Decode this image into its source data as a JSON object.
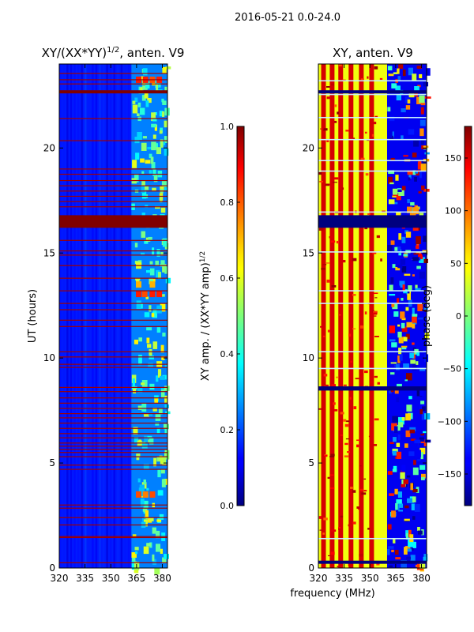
{
  "page": {
    "title": "2016-05-21 0.0-24.0"
  },
  "chart_data": [
    {
      "type": "heatmap",
      "title": "XY/(XX*YY)",
      "title_exponent": "1/2",
      "title_suffix": ", anten. V9",
      "xlabel": "",
      "ylabel": "UT (hours)",
      "xlim": [
        320,
        383
      ],
      "ylim": [
        0,
        24
      ],
      "xticks": [
        320,
        335,
        350,
        365,
        380
      ],
      "yticks": [
        0,
        5,
        10,
        15,
        20
      ],
      "colorbar": {
        "label": "XY amp. / (XX*YY amp)",
        "label_exponent": "1/2",
        "range": [
          0.0,
          1.0
        ],
        "ticks": [
          "0.0",
          "0.2",
          "0.4",
          "0.6",
          "0.8",
          "1.0"
        ],
        "colormap": "jet"
      },
      "features": {
        "saturated_bands_hours": [
          [
            16.2,
            16.8
          ],
          [
            22.6,
            22.75
          ]
        ],
        "thin_bad_lines_hours": [
          0.25,
          1.45,
          1.5,
          2.05,
          2.4,
          2.85,
          3.0,
          4.7,
          4.9,
          5.3,
          5.5,
          5.65,
          5.8,
          5.95,
          6.2,
          6.4,
          6.65,
          6.9,
          7.15,
          7.35,
          7.6,
          7.85,
          8.1,
          8.4,
          8.6,
          9.55,
          9.7,
          10.05,
          10.3,
          11.5,
          11.8,
          12.3,
          12.6,
          13.2,
          13.8,
          14.4,
          14.9,
          15.1,
          15.6,
          17.2,
          17.45,
          17.7,
          17.95,
          18.2,
          18.45,
          18.75,
          19.0,
          20.35,
          21.4,
          23.05,
          23.25,
          23.55
        ],
        "band_lo_value": 0.15,
        "active_band_mhz": [
          362,
          383
        ],
        "active_band_value": 0.45,
        "hot_spots": [
          {
            "freq_mhz": 366,
            "ut": 13.05,
            "value": 0.85
          },
          {
            "freq_mhz": 369.5,
            "ut": 13.05,
            "value": 0.8
          },
          {
            "freq_mhz": 374,
            "ut": 13.05,
            "value": 0.85
          },
          {
            "freq_mhz": 378,
            "ut": 13.05,
            "value": 0.85
          },
          {
            "freq_mhz": 366,
            "ut": 3.5,
            "value": 0.8
          },
          {
            "freq_mhz": 370,
            "ut": 3.5,
            "value": 0.75
          },
          {
            "freq_mhz": 374,
            "ut": 3.5,
            "value": 0.8
          },
          {
            "freq_mhz": 366,
            "ut": 23.25,
            "value": 0.85
          },
          {
            "freq_mhz": 370,
            "ut": 23.25,
            "value": 0.85
          },
          {
            "freq_mhz": 374,
            "ut": 23.25,
            "value": 0.8
          },
          {
            "freq_mhz": 378,
            "ut": 23.25,
            "value": 0.85
          },
          {
            "freq_mhz": 366,
            "ut": 13.5,
            "value": 0.7
          },
          {
            "freq_mhz": 374,
            "ut": 13.5,
            "value": 0.7
          },
          {
            "freq_mhz": 366,
            "ut": 14.4,
            "value": 0.6
          },
          {
            "freq_mhz": 378,
            "ut": 9.7,
            "value": 0.6
          }
        ]
      }
    },
    {
      "type": "heatmap",
      "title": "XY, anten. V9",
      "xlabel": "frequency (MHz)",
      "ylabel": "",
      "xlim": [
        320,
        383
      ],
      "ylim": [
        0,
        24
      ],
      "xticks": [
        320,
        335,
        350,
        365,
        380
      ],
      "yticks": [
        0,
        5,
        10,
        15,
        20
      ],
      "colorbar": {
        "label": "phase (deg)",
        "range": [
          -180,
          180
        ],
        "ticks": [
          "150",
          "100",
          "50",
          "0",
          "−50",
          "−100",
          "−150"
        ],
        "colormap": "jet"
      },
      "features": {
        "blank_bands_hours": [
          [
            16.2,
            16.8
          ],
          [
            22.6,
            22.75
          ],
          [
            8.45,
            8.65
          ],
          [
            0.2,
            0.35
          ]
        ],
        "light_lines_hours": [
          0.3,
          1.4,
          8.55,
          9.5,
          10.3,
          12.6,
          13.2,
          15.05,
          16.95,
          18.9,
          19.4,
          20.4,
          21.45,
          22.55,
          23.2
        ],
        "stripe_centers_mhz": [
          323,
          328,
          333,
          339,
          345,
          351
        ],
        "stripe_phase_deg": 150,
        "stripe_gap_phase_deg": 40,
        "noisy_band_mhz": [
          360,
          383
        ]
      }
    }
  ]
}
